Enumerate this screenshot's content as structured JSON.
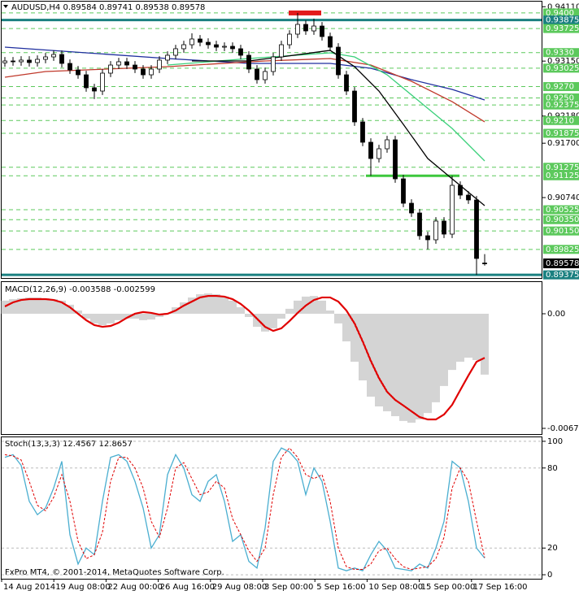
{
  "chart_data": [
    {
      "type": "candlestick",
      "title": "AUDUSD,H4  0.89584 0.89741 0.89538 0.89578",
      "open": [
        0.9312,
        0.93152,
        0.93138,
        0.93167,
        0.93124,
        0.93181,
        0.93224,
        0.93267,
        0.93109,
        0.92994,
        0.92908,
        0.92679,
        0.92621,
        0.92937,
        0.9308,
        0.93138,
        0.9308,
        0.93009,
        0.92908,
        0.93009,
        0.93167,
        0.93253,
        0.93368,
        0.93439,
        0.9354,
        0.93482,
        0.93439,
        0.93396,
        0.93411,
        0.93368,
        0.93253,
        0.93009,
        0.92822,
        0.92966,
        0.93224,
        0.93439,
        0.93626,
        0.93798,
        0.93683,
        0.93769,
        0.93583,
        0.93396,
        0.92908,
        0.92621,
        0.92076,
        0.91717,
        0.9143,
        0.91602,
        0.9176,
        0.91071,
        0.9064,
        0.90468,
        0.90066,
        0.89995,
        0.90325,
        0.90095,
        0.90956,
        0.90784,
        0.90698,
        0.89584
      ],
      "high": [
        0.93222,
        0.93222,
        0.93237,
        0.93237,
        0.93251,
        0.93294,
        0.93337,
        0.93337,
        0.93179,
        0.93064,
        0.92978,
        0.92749,
        0.93007,
        0.9315,
        0.93208,
        0.93208,
        0.9315,
        0.93079,
        0.93079,
        0.93237,
        0.93323,
        0.93438,
        0.93509,
        0.9364,
        0.9361,
        0.93552,
        0.93509,
        0.93481,
        0.93481,
        0.93438,
        0.93323,
        0.93079,
        0.93036,
        0.93294,
        0.93509,
        0.93696,
        0.94,
        0.93868,
        0.939,
        0.93839,
        0.93653,
        0.93466,
        0.92978,
        0.92691,
        0.92146,
        0.91787,
        0.91672,
        0.9183,
        0.9183,
        0.91141,
        0.9071,
        0.90538,
        0.90136,
        0.90395,
        0.90395,
        0.91125,
        0.91026,
        0.90854,
        0.90768,
        0.89741
      ],
      "low": [
        0.9305,
        0.93068,
        0.93068,
        0.93054,
        0.93054,
        0.93111,
        0.93154,
        0.93039,
        0.92924,
        0.92838,
        0.92609,
        0.9248,
        0.92551,
        0.92867,
        0.9301,
        0.9301,
        0.92939,
        0.92838,
        0.92838,
        0.92939,
        0.93097,
        0.93183,
        0.93298,
        0.93369,
        0.93412,
        0.93369,
        0.93326,
        0.93326,
        0.93298,
        0.93183,
        0.92939,
        0.92752,
        0.92752,
        0.92896,
        0.93154,
        0.93369,
        0.93556,
        0.93613,
        0.93613,
        0.93513,
        0.93326,
        0.92838,
        0.92551,
        0.92006,
        0.91647,
        0.91125,
        0.9136,
        0.91532,
        0.91001,
        0.9057,
        0.90398,
        0.89996,
        0.89825,
        0.89925,
        0.90025,
        0.90025,
        0.90714,
        0.90628,
        0.89375,
        0.89538
      ],
      "close": [
        0.93152,
        0.93138,
        0.93167,
        0.93124,
        0.93181,
        0.93224,
        0.93267,
        0.93109,
        0.92994,
        0.92908,
        0.92679,
        0.92621,
        0.92937,
        0.9308,
        0.93138,
        0.9308,
        0.93009,
        0.92908,
        0.93009,
        0.93167,
        0.93253,
        0.93368,
        0.93439,
        0.9354,
        0.93482,
        0.93439,
        0.93396,
        0.93411,
        0.93368,
        0.93253,
        0.93009,
        0.92822,
        0.92966,
        0.93224,
        0.93439,
        0.93626,
        0.93798,
        0.93683,
        0.93769,
        0.93583,
        0.93396,
        0.92908,
        0.92621,
        0.92076,
        0.91717,
        0.9143,
        0.91602,
        0.9176,
        0.91071,
        0.9064,
        0.90468,
        0.90066,
        0.89995,
        0.90325,
        0.90095,
        0.90956,
        0.90784,
        0.90698,
        0.89665,
        0.89578
      ],
      "up_color": "#ffffff",
      "down_color": "#000000",
      "ylim": [
        0.8932,
        0.942
      ],
      "yticks": [
        {
          "value": 0.9411,
          "label": "0.94110"
        },
        {
          "value": 0.9315,
          "label": "0.93150"
        },
        {
          "value": 0.9218,
          "label": "0.92180"
        },
        {
          "value": 0.917,
          "label": "0.91700"
        },
        {
          "value": 0.9074,
          "label": "0.90740"
        }
      ],
      "levels": [
        {
          "value": 0.94,
          "label": "0.9400",
          "color": "#5cc95c"
        },
        {
          "value": 0.93875,
          "label": "0.93875",
          "color": "#1a8080"
        },
        {
          "value": 0.93725,
          "label": "0.93725",
          "color": "#5cc95c"
        },
        {
          "value": 0.933,
          "label": "0.9330",
          "color": "#5cc95c"
        },
        {
          "value": 0.93025,
          "label": "0.93025",
          "color": "#5cc95c"
        },
        {
          "value": 0.927,
          "label": "0.9270",
          "color": "#5cc95c"
        },
        {
          "value": 0.925,
          "label": "0.9250",
          "color": "#5cc95c"
        },
        {
          "value": 0.92375,
          "label": "0.92375",
          "color": "#5cc95c"
        },
        {
          "value": 0.921,
          "label": "0.9210",
          "color": "#5cc95c"
        },
        {
          "value": 0.91875,
          "label": "0.91875",
          "color": "#5cc95c"
        },
        {
          "value": 0.91275,
          "label": "0.91275",
          "color": "#5cc95c"
        },
        {
          "value": 0.91125,
          "label": "0.91125",
          "color": "#5cc95c"
        },
        {
          "value": 0.90525,
          "label": "0.90525",
          "color": "#5cc95c"
        },
        {
          "value": 0.9035,
          "label": "0.90350",
          "color": "#5cc95c"
        },
        {
          "value": 0.9015,
          "label": "0.90150",
          "color": "#5cc95c"
        },
        {
          "value": 0.89825,
          "label": "0.89825",
          "color": "#5cc95c"
        },
        {
          "value": 0.89375,
          "label": "0.89375",
          "color": "#1a8080"
        }
      ],
      "highlights": [
        {
          "value": 0.94,
          "color": "#e31a1c"
        },
        {
          "value": 0.91125,
          "color": "#3cc83c"
        }
      ],
      "last_price": 0.89578,
      "moving_averages": [
        {
          "color": "#1f2f9f",
          "x": [
            0,
            10,
            20,
            30,
            40,
            45,
            50,
            55,
            59
          ],
          "values": [
            0.93396,
            0.93296,
            0.93195,
            0.93109,
            0.93109,
            0.93023,
            0.92822,
            0.9265,
            0.92463
          ]
        },
        {
          "color": "#c0392b",
          "x": [
            0,
            5,
            20,
            32,
            40,
            45,
            50,
            55,
            59
          ],
          "values": [
            0.92865,
            0.92966,
            0.93052,
            0.93152,
            0.93195,
            0.9308,
            0.92793,
            0.92434,
            0.92076
          ]
        },
        {
          "color": "#3ad07a",
          "x": [
            20,
            30,
            40,
            43,
            47,
            51,
            55,
            59
          ],
          "values": [
            0.9308,
            0.93195,
            0.93296,
            0.93224,
            0.92908,
            0.92434,
            0.91961,
            0.91387
          ]
        },
        {
          "color": "#000000",
          "x": [
            23,
            30,
            34,
            40,
            43,
            46,
            49,
            52,
            55,
            59
          ],
          "values": [
            0.93152,
            0.93152,
            0.93224,
            0.93339,
            0.93052,
            0.92621,
            0.92033,
            0.9143,
            0.91071,
            0.90597
          ]
        }
      ],
      "xtick_labels": [
        "14 Aug 2014",
        "19 Aug 08:00",
        "22 Aug 00:00",
        "26 Aug 16:00",
        "29 Aug 08:00",
        "3 Sep 00:00",
        "5 Sep 16:00",
        "10 Sep 08:00",
        "15 Sep 00:00",
        "17 Sep 16:00"
      ]
    },
    {
      "type": "macd",
      "title": "MACD(12,26,9) -0.003588 -0.002599",
      "values": [
        0.00077,
        0.00086,
        0.00091,
        0.00096,
        0.00096,
        0.00091,
        0.00086,
        0.00077,
        0.00053,
        0.00019,
        -0.00029,
        -0.00057,
        -0.00067,
        -0.00057,
        -0.00038,
        -0.00029,
        -0.00029,
        -0.00038,
        -0.00034,
        -0.00019,
        5e-05,
        0.00038,
        0.00067,
        0.00096,
        0.00115,
        0.0012,
        0.00115,
        0.00101,
        0.00077,
        0.00038,
        -0.00019,
        -0.00077,
        -0.00105,
        -0.00086,
        -0.00029,
        0.00029,
        0.00077,
        0.00101,
        0.00105,
        0.00077,
        0.00019,
        -0.00057,
        -0.00163,
        -0.00283,
        -0.00393,
        -0.00489,
        -0.00546,
        -0.00575,
        -0.00604,
        -0.00632,
        -0.00642,
        -0.00623,
        -0.00585,
        -0.00522,
        -0.00426,
        -0.00331,
        -0.00283,
        -0.00259,
        -0.00273,
        -0.003588
      ],
      "color": "#a8a8a8",
      "signal": [
        0.00043,
        0.00067,
        0.00081,
        0.00086,
        0.00086,
        0.00086,
        0.00081,
        0.00067,
        0.00038,
        0,
        -0.00038,
        -0.00067,
        -0.00077,
        -0.00072,
        -0.00053,
        -0.00024,
        0,
        0.0001,
        5e-05,
        -5e-05,
        0,
        0.00019,
        0.00048,
        0.00072,
        0.00096,
        0.00105,
        0.00105,
        0.00101,
        0.00086,
        0.00058,
        0.00019,
        -0.00029,
        -0.00077,
        -0.00101,
        -0.00086,
        -0.00043,
        5e-05,
        0.00048,
        0.00081,
        0.00096,
        0.00096,
        0.00072,
        0.00019,
        -0.00057,
        -0.00163,
        -0.00278,
        -0.00379,
        -0.0046,
        -0.00508,
        -0.00541,
        -0.00575,
        -0.00609,
        -0.00623,
        -0.00623,
        -0.00594,
        -0.00537,
        -0.0045,
        -0.00364,
        -0.00283,
        -0.002599
      ],
      "signal_color": "#e00000",
      "ylim": [
        -0.00714,
        0.00182
      ],
      "yticks": [
        {
          "value": 0,
          "label": "0.00"
        },
        -0.006756
      ]
    },
    {
      "type": "line",
      "title": "Stoch(13,3,3) 12.4567 12.8657",
      "series": [
        {
          "color": "#4aaed0",
          "values": [
            88,
            90,
            82,
            55,
            45,
            50,
            65,
            85,
            30,
            8,
            20,
            15,
            55,
            88,
            90,
            85,
            70,
            50,
            20,
            30,
            75,
            90,
            80,
            60,
            55,
            70,
            75,
            55,
            25,
            30,
            10,
            5,
            35,
            85,
            95,
            92,
            85,
            60,
            80,
            70,
            40,
            5,
            3,
            5,
            3,
            15,
            25,
            18,
            5,
            4,
            3,
            8,
            5,
            20,
            40,
            85,
            80,
            55,
            20,
            12.4567
          ]
        },
        {
          "color": "#e00000",
          "dashed": true,
          "values": [
            90,
            89,
            86,
            70,
            52,
            48,
            58,
            75,
            55,
            25,
            12,
            15,
            32,
            70,
            88,
            88,
            80,
            65,
            40,
            28,
            50,
            80,
            84,
            72,
            60,
            62,
            70,
            65,
            42,
            30,
            18,
            10,
            20,
            60,
            88,
            95,
            88,
            75,
            72,
            75,
            55,
            20,
            6,
            4,
            4,
            8,
            18,
            20,
            12,
            6,
            4,
            5,
            6,
            12,
            28,
            65,
            80,
            70,
            40,
            12.8657
          ]
        }
      ],
      "ylim": [
        -3,
        103
      ],
      "yticks": [
        100,
        80,
        20,
        0
      ],
      "grid": true,
      "credit": "FxPro MT4, © 2001-2014, MetaQuotes Software Corp."
    }
  ]
}
